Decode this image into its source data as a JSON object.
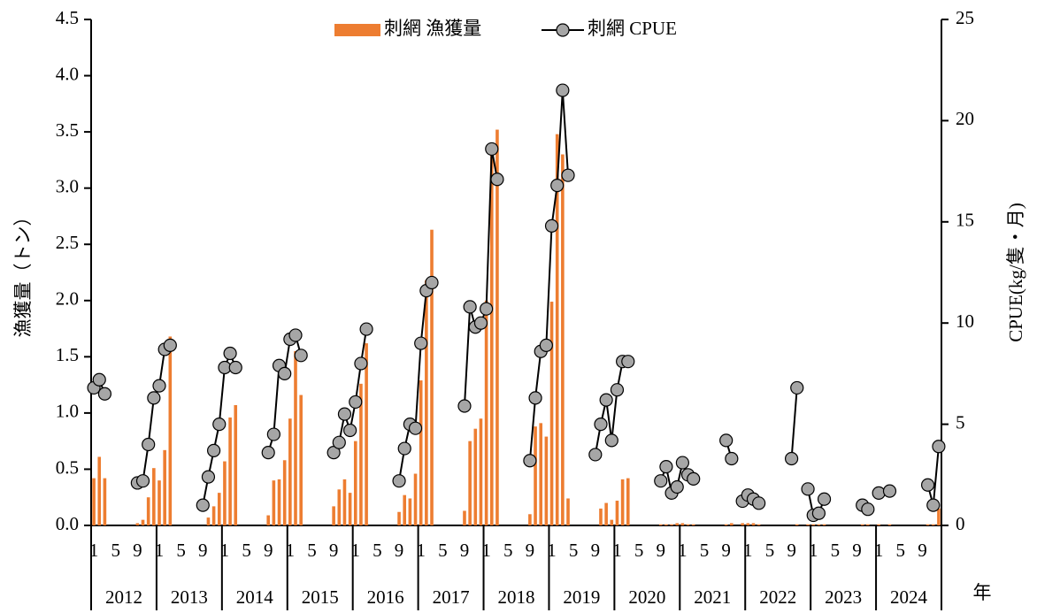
{
  "chart_data": {
    "type": "bar-line",
    "y_label": "漁獲量（トン）",
    "y2_label": "CPUE(kg/隻・月)",
    "x_label": "年",
    "categories": [
      "1",
      null,
      null,
      null,
      "5",
      null,
      null,
      null,
      "9",
      null,
      null,
      null,
      "1",
      null,
      null,
      null,
      "5",
      null,
      null,
      null,
      "9",
      null,
      null,
      null,
      "1",
      null,
      null,
      null,
      "5",
      null,
      null,
      null,
      "9",
      null,
      null,
      null,
      "1",
      null,
      null,
      null,
      "5",
      null,
      null,
      null,
      "9",
      null,
      null,
      null,
      "1",
      null,
      null,
      null,
      "5",
      null,
      null,
      null,
      "9",
      null,
      null,
      null,
      "1",
      null,
      null,
      null,
      "5",
      null,
      null,
      null,
      "9",
      null,
      null,
      null,
      "1",
      null,
      null,
      null,
      "5",
      null,
      null,
      null,
      "9",
      null,
      null,
      null,
      "1",
      null,
      null,
      null,
      "5",
      null,
      null,
      null,
      "9",
      null,
      null,
      null,
      "1",
      null,
      null,
      null,
      "5",
      null,
      null,
      null,
      "9",
      null,
      null,
      null,
      "1",
      null,
      null,
      null,
      "5",
      null,
      null,
      null,
      "9",
      null,
      null,
      null,
      "1",
      null,
      null,
      null,
      "5",
      null,
      null,
      null,
      "9",
      null,
      null,
      null,
      "1",
      null,
      null,
      null,
      "5",
      null,
      null,
      null,
      "9",
      null,
      null,
      null,
      "1",
      null,
      null,
      null,
      "5",
      null,
      null,
      null,
      "9",
      null,
      null,
      null
    ],
    "years": [
      "2012",
      "2013",
      "2014",
      "2015",
      "2016",
      "2017",
      "2018",
      "2019",
      "2020",
      "2021",
      "2022",
      "2023",
      "2024"
    ],
    "ylim": [
      0,
      4.5
    ],
    "yticks": [
      {
        "value": 0,
        "label": "0.0"
      },
      0.5,
      {
        "value": 1,
        "label": "1.0"
      },
      1.5,
      {
        "value": 2,
        "label": "2.0"
      },
      2.5,
      {
        "value": 3,
        "label": "3.0"
      },
      3.5,
      {
        "value": 4,
        "label": "4.0"
      },
      4.5
    ],
    "y2lim": [
      0,
      25
    ],
    "y2ticks": [
      0,
      5,
      10,
      15,
      20,
      25
    ],
    "series": [
      {
        "name": "刺網 漁獲量",
        "color": "#ED7D31",
        "type": "bar",
        "values": [
          0.42,
          0.61,
          0.42,
          null,
          null,
          null,
          null,
          null,
          0.02,
          0.05,
          0.25,
          0.51,
          0.4,
          0.67,
          1.68,
          null,
          null,
          null,
          null,
          null,
          null,
          0.07,
          0.17,
          0.29,
          0.57,
          0.96,
          1.07,
          null,
          null,
          null,
          null,
          null,
          0.09,
          0.4,
          0.41,
          0.58,
          0.95,
          1.55,
          1.16,
          null,
          null,
          null,
          null,
          null,
          0.17,
          0.32,
          0.41,
          0.29,
          0.75,
          1.26,
          1.62,
          null,
          null,
          null,
          null,
          null,
          0.12,
          0.27,
          0.24,
          0.46,
          1.29,
          2.18,
          2.63,
          null,
          null,
          null,
          null,
          null,
          0.13,
          0.75,
          0.86,
          0.95,
          2.0,
          3.3,
          3.52,
          null,
          null,
          null,
          null,
          null,
          0.1,
          0.88,
          0.91,
          0.79,
          1.99,
          3.48,
          3.3,
          0.24,
          null,
          null,
          null,
          null,
          null,
          0.15,
          0.2,
          0.05,
          0.22,
          0.41,
          0.42,
          null,
          null,
          null,
          null,
          null,
          0.01,
          0.01,
          0.01,
          0.02,
          0.02,
          0.01,
          0.01,
          null,
          null,
          null,
          null,
          null,
          0.01,
          0.02,
          null,
          0.02,
          0.02,
          0.02,
          0.01,
          null,
          null,
          null,
          null,
          null,
          null,
          0.01,
          null,
          0.01,
          0.01,
          0.01,
          0.01,
          null,
          null,
          null,
          null,
          null,
          null,
          0.01,
          0.01,
          null,
          0.01,
          null,
          0.01,
          null,
          null,
          null,
          null,
          null,
          null,
          0.01,
          0.01,
          0.15
        ]
      },
      {
        "name": "刺網 CPUE",
        "color": "#A6A6A6",
        "type": "line",
        "axis": "y2",
        "values": [
          6.8,
          7.2,
          6.5,
          null,
          null,
          null,
          null,
          null,
          2.1,
          2.2,
          4.0,
          6.3,
          6.9,
          8.7,
          8.9,
          null,
          null,
          null,
          null,
          null,
          1.0,
          2.4,
          3.7,
          5.0,
          7.8,
          8.5,
          7.8,
          null,
          null,
          null,
          null,
          null,
          3.6,
          4.5,
          7.9,
          7.5,
          9.2,
          9.4,
          8.4,
          null,
          null,
          null,
          null,
          null,
          3.6,
          4.1,
          5.5,
          4.7,
          6.1,
          8.0,
          9.7,
          null,
          null,
          null,
          null,
          null,
          2.2,
          3.8,
          5.0,
          4.8,
          9.0,
          11.6,
          12.0,
          null,
          null,
          null,
          null,
          null,
          5.9,
          10.8,
          9.8,
          10.0,
          10.7,
          18.6,
          17.1,
          null,
          null,
          null,
          null,
          null,
          3.2,
          6.3,
          8.6,
          8.9,
          14.8,
          16.8,
          21.5,
          17.3,
          null,
          null,
          null,
          null,
          3.5,
          5.0,
          6.2,
          4.2,
          6.7,
          8.1,
          8.1,
          null,
          null,
          null,
          null,
          null,
          2.2,
          2.9,
          1.6,
          1.9,
          3.1,
          2.5,
          2.3,
          null,
          null,
          null,
          null,
          null,
          4.2,
          3.3,
          null,
          1.2,
          1.5,
          1.3,
          1.1,
          null,
          null,
          null,
          null,
          null,
          3.3,
          6.8,
          null,
          1.8,
          0.5,
          0.6,
          1.3,
          null,
          null,
          null,
          null,
          null,
          null,
          1.0,
          0.8,
          null,
          1.6,
          null,
          1.7,
          null,
          null,
          null,
          null,
          null,
          null,
          2.0,
          1.0,
          3.9
        ]
      }
    ]
  }
}
